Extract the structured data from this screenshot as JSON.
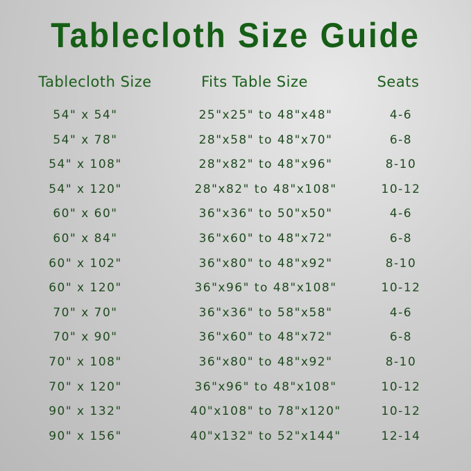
{
  "title": "Tablecloth Size Guide",
  "headers": [
    "Tablecloth Size",
    "Fits Table Size",
    "Seats"
  ],
  "rows": [
    [
      "54\" x 54\"",
      "25\"x25\" to 48\"x48\"",
      "4-6"
    ],
    [
      "54\" x 78\"",
      "28\"x58\" to 48\"x70\"",
      "6-8"
    ],
    [
      "54\" x 108\"",
      "28\"x82\" to 48\"x96\"",
      "8-10"
    ],
    [
      "54\" x 120\"",
      "28\"x82\" to 48\"x108\"",
      "10-12"
    ],
    [
      "60\" x 60\"",
      "36\"x36\" to 50\"x50\"",
      "4-6"
    ],
    [
      "60\" x 84\"",
      "36\"x60\" to 48\"x72\"",
      "6-8"
    ],
    [
      "60\" x 102\"",
      "36\"x80\" to 48\"x92\"",
      "8-10"
    ],
    [
      "60\" x 120\"",
      "36\"x96\" to 48\"x108\"",
      "10-12"
    ],
    [
      "70\" x 70\"",
      "36\"x36\" to 58\"x58\"",
      "4-6"
    ],
    [
      "70\" x 90\"",
      "36\"x60\" to 48\"x72\"",
      "6-8"
    ],
    [
      "70\" x 108\"",
      "36\"x80\" to 48\"x92\"",
      "8-10"
    ],
    [
      "70\" x 120\"",
      "36\"x96\" to 48\"x108\"",
      "10-12"
    ],
    [
      "90\" x 132\"",
      "40\"x108\" to 78\"x120\"",
      "10-12"
    ],
    [
      "90\" x 156\"",
      "40\"x132\" to 52\"x144\"",
      "12-14"
    ]
  ],
  "colors": {
    "title": "#165e16",
    "header": "#1b5e1b",
    "text": "#1f4a1f"
  }
}
